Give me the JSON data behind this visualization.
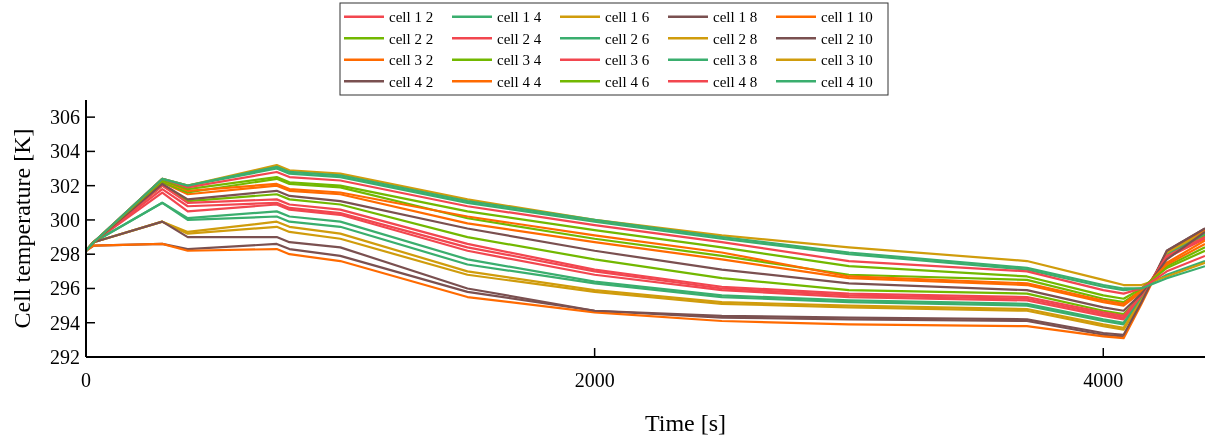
{
  "chart_data": {
    "type": "line",
    "xlabel": "Time [s]",
    "ylabel": "Cell temperature [K]",
    "x": [
      0,
      30,
      300,
      400,
      750,
      800,
      1000,
      1500,
      2000,
      2500,
      3000,
      3700,
      4000,
      4080,
      4150,
      4250,
      4400
    ],
    "xlim": [
      0,
      4400
    ],
    "xticks": [
      0,
      2000,
      4000
    ],
    "ylim": [
      292,
      307
    ],
    "yticks": [
      292,
      294,
      296,
      298,
      300,
      302,
      304,
      306
    ],
    "grid": false,
    "legend": "top",
    "marker": "none",
    "line_style": "solid",
    "series": [
      {
        "name": "cell 1 2",
        "color": "#f2464f",
        "values": [
          298.2,
          298.7,
          301.6,
          300.5,
          300.9,
          300.6,
          300.3,
          298.2,
          296.8,
          295.9,
          295.5,
          295.3,
          294.4,
          294.2,
          295.5,
          297.9,
          299.0
        ]
      },
      {
        "name": "cell 1 4",
        "color": "#3aae6e",
        "values": [
          298.2,
          298.7,
          301.0,
          300.0,
          300.2,
          299.9,
          299.6,
          297.4,
          296.3,
          295.5,
          295.2,
          295.0,
          294.1,
          293.9,
          295.4,
          298.0,
          299.2
        ]
      },
      {
        "name": "cell 1 6",
        "color": "#d09c0c",
        "values": [
          298.2,
          298.7,
          299.9,
          299.2,
          299.6,
          299.3,
          298.9,
          296.8,
          295.8,
          295.1,
          294.9,
          294.7,
          293.8,
          293.6,
          295.3,
          298.1,
          299.3
        ]
      },
      {
        "name": "cell 1 8",
        "color": "#7a5050",
        "values": [
          298.2,
          298.5,
          298.6,
          298.3,
          298.6,
          298.3,
          297.9,
          295.8,
          294.7,
          294.3,
          294.2,
          294.1,
          293.3,
          293.2,
          295.2,
          298.2,
          299.5
        ]
      },
      {
        "name": "cell 1 10",
        "color": "#ff6a00",
        "values": [
          298.2,
          298.5,
          298.6,
          298.2,
          298.3,
          298.0,
          297.6,
          295.5,
          294.6,
          294.1,
          293.9,
          293.8,
          293.2,
          293.1,
          295.1,
          298.1,
          299.4
        ]
      },
      {
        "name": "cell 2 2",
        "color": "#72b800",
        "values": [
          298.2,
          298.7,
          302.0,
          301.1,
          301.5,
          301.2,
          300.9,
          299.0,
          297.7,
          296.6,
          295.9,
          295.7,
          294.7,
          294.5,
          295.6,
          297.8,
          299.1
        ]
      },
      {
        "name": "cell 2 4",
        "color": "#f2464f",
        "values": [
          298.2,
          298.7,
          301.8,
          300.8,
          301.0,
          300.7,
          300.4,
          298.4,
          297.0,
          296.0,
          295.6,
          295.4,
          294.5,
          294.3,
          295.5,
          297.8,
          298.9
        ]
      },
      {
        "name": "cell 2 6",
        "color": "#3aae6e",
        "values": [
          298.2,
          298.7,
          301.0,
          300.1,
          300.5,
          300.2,
          299.9,
          297.7,
          296.4,
          295.6,
          295.3,
          295.1,
          294.2,
          294.0,
          295.4,
          298.0,
          299.2
        ]
      },
      {
        "name": "cell 2 8",
        "color": "#d09c0c",
        "values": [
          298.2,
          298.7,
          299.9,
          299.3,
          299.9,
          299.6,
          299.2,
          297.0,
          295.9,
          295.2,
          295.0,
          294.8,
          293.9,
          293.7,
          295.3,
          298.1,
          299.3
        ]
      },
      {
        "name": "cell 2 10",
        "color": "#7a5050",
        "values": [
          298.2,
          298.7,
          299.9,
          299.0,
          299.0,
          298.7,
          298.4,
          296.0,
          294.7,
          294.4,
          294.3,
          294.2,
          293.4,
          293.3,
          295.2,
          298.2,
          299.5
        ]
      },
      {
        "name": "cell 3 2",
        "color": "#ff6a00",
        "values": [
          298.2,
          298.7,
          302.2,
          301.5,
          302.0,
          301.7,
          301.5,
          299.8,
          298.7,
          297.7,
          296.6,
          296.2,
          295.2,
          295.0,
          295.8,
          297.5,
          298.8
        ]
      },
      {
        "name": "cell 3 4",
        "color": "#72b800",
        "values": [
          298.2,
          298.7,
          302.2,
          301.6,
          302.4,
          302.1,
          301.9,
          300.1,
          298.9,
          297.9,
          296.8,
          296.5,
          295.4,
          295.2,
          295.9,
          297.3,
          298.4
        ]
      },
      {
        "name": "cell 3 6",
        "color": "#f2464f",
        "values": [
          298.2,
          298.7,
          302.0,
          301.0,
          301.2,
          300.9,
          300.6,
          298.6,
          297.1,
          296.1,
          295.7,
          295.5,
          294.6,
          294.4,
          295.6,
          297.9,
          299.0
        ]
      },
      {
        "name": "cell 3 8",
        "color": "#3aae6e",
        "values": [
          298.2,
          298.7,
          302.4,
          302.0,
          303.0,
          302.7,
          302.5,
          301.0,
          299.9,
          298.9,
          298.0,
          297.1,
          296.1,
          295.9,
          296.0,
          296.8,
          297.6
        ]
      },
      {
        "name": "cell 3 10",
        "color": "#d09c0c",
        "values": [
          298.2,
          298.7,
          302.4,
          302.0,
          303.2,
          302.9,
          302.7,
          301.2,
          300.0,
          299.1,
          298.4,
          297.6,
          296.5,
          296.2,
          296.2,
          296.7,
          297.5
        ]
      },
      {
        "name": "cell 4 2",
        "color": "#7a5050",
        "values": [
          298.2,
          298.7,
          302.1,
          301.2,
          301.7,
          301.4,
          301.1,
          299.5,
          298.2,
          297.1,
          296.3,
          295.9,
          294.9,
          294.7,
          295.7,
          297.7,
          299.3
        ]
      },
      {
        "name": "cell 4 4",
        "color": "#ff6a00",
        "values": [
          298.2,
          298.7,
          302.3,
          301.7,
          302.1,
          301.8,
          301.6,
          300.2,
          299.1,
          298.1,
          296.7,
          296.3,
          295.3,
          295.1,
          295.9,
          297.4,
          298.6
        ]
      },
      {
        "name": "cell 4 6",
        "color": "#72b800",
        "values": [
          298.2,
          298.7,
          302.3,
          301.8,
          302.5,
          302.2,
          302.0,
          300.5,
          299.4,
          298.4,
          297.3,
          296.7,
          295.6,
          295.4,
          296.0,
          297.2,
          298.2
        ]
      },
      {
        "name": "cell 4 8",
        "color": "#f2464f",
        "values": [
          298.2,
          298.7,
          302.4,
          301.9,
          302.8,
          302.5,
          302.3,
          300.8,
          299.7,
          298.7,
          297.6,
          297.0,
          295.9,
          295.7,
          296.0,
          297.0,
          297.9
        ]
      },
      {
        "name": "cell 4 10",
        "color": "#3aae6e",
        "values": [
          298.2,
          298.7,
          302.4,
          302.0,
          303.1,
          302.8,
          302.6,
          301.1,
          300.0,
          299.0,
          298.1,
          297.2,
          296.2,
          296.0,
          296.0,
          296.6,
          297.3
        ]
      }
    ]
  }
}
